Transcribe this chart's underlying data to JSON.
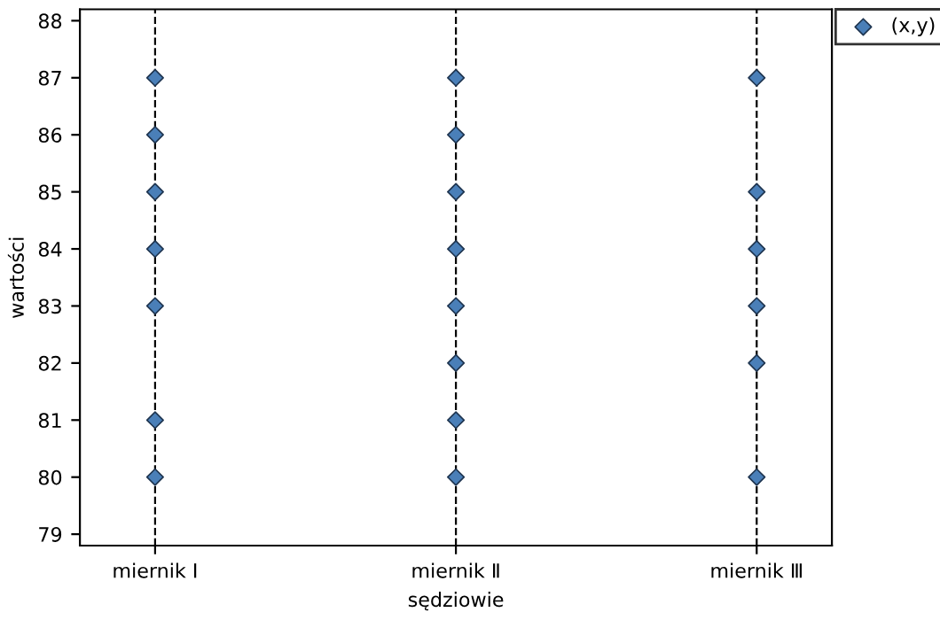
{
  "chart_data": {
    "type": "scatter",
    "xlabel": "sędziowie",
    "ylabel": "wartości",
    "categories": [
      "miernik Ⅰ",
      "miernik Ⅱ",
      "miernik Ⅲ"
    ],
    "series": [
      {
        "name": "(x,y)",
        "color": "#4a7fb8",
        "x": [
          "miernik Ⅰ",
          "miernik Ⅰ",
          "miernik Ⅰ",
          "miernik Ⅰ",
          "miernik Ⅰ",
          "miernik Ⅰ",
          "miernik Ⅰ",
          "miernik Ⅱ",
          "miernik Ⅱ",
          "miernik Ⅱ",
          "miernik Ⅱ",
          "miernik Ⅱ",
          "miernik Ⅱ",
          "miernik Ⅱ",
          "miernik Ⅱ",
          "miernik Ⅲ",
          "miernik Ⅲ",
          "miernik Ⅲ",
          "miernik Ⅲ",
          "miernik Ⅲ",
          "miernik Ⅲ"
        ],
        "values": [
          80,
          81,
          83,
          84,
          85,
          86,
          87,
          80,
          81,
          82,
          83,
          84,
          85,
          86,
          87,
          80,
          82,
          83,
          84,
          85,
          87
        ]
      }
    ],
    "ylim": [
      78.8,
      88.2
    ],
    "yticks": [
      79,
      80,
      81,
      82,
      83,
      84,
      85,
      86,
      87,
      88
    ],
    "grid": "x",
    "line_style": "dashed",
    "marker": "diamond",
    "legend": "top right"
  }
}
